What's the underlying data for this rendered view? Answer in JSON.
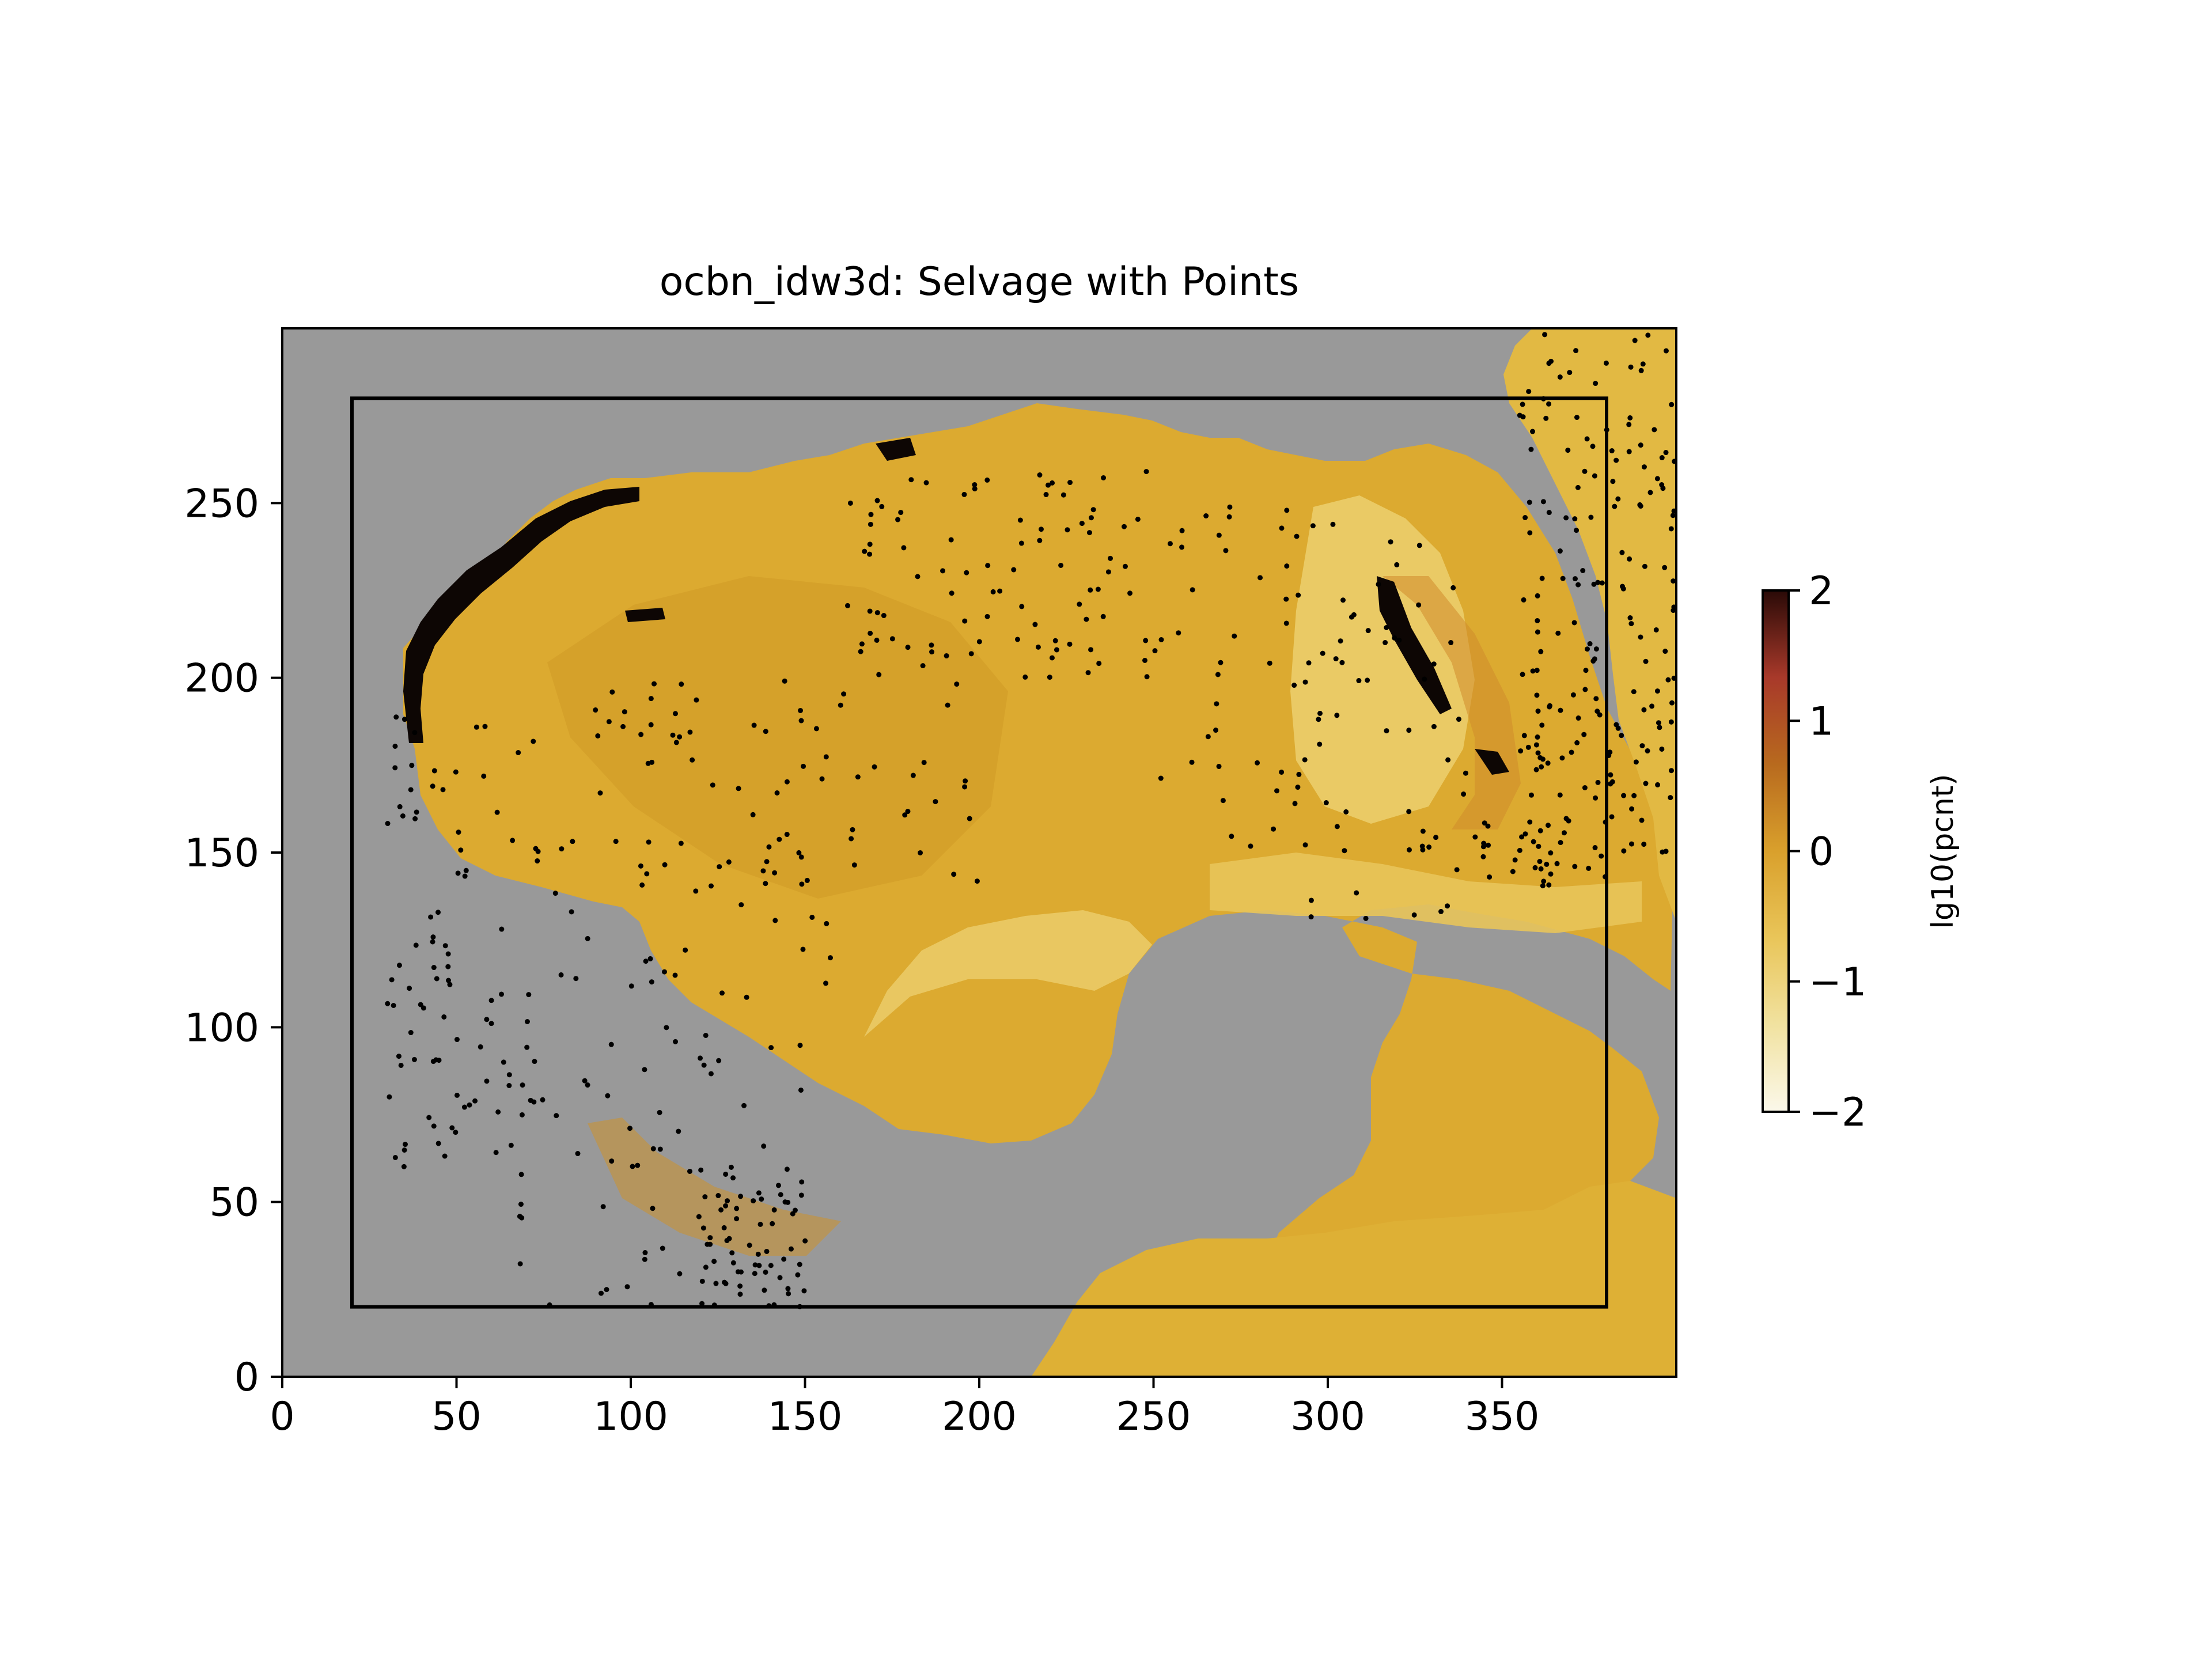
{
  "chart_data": {
    "type": "heatmap",
    "title": "ocbn_idw3d: Selvage with Points",
    "xlabel": "",
    "ylabel": "",
    "xlim": [
      0,
      400
    ],
    "ylim": [
      0,
      300
    ],
    "x_ticks": [
      0,
      50,
      100,
      150,
      200,
      250,
      300,
      350
    ],
    "y_ticks": [
      0,
      50,
      100,
      150,
      200,
      250
    ],
    "colorbar": {
      "label": "lg10(pcnt)",
      "range": [
        -2,
        2
      ],
      "ticks": [
        2,
        1,
        0,
        -1,
        -2
      ],
      "tick_labels": [
        "2",
        "1",
        "0",
        "−1",
        "−2"
      ],
      "colors": [
        "#fbf8ea",
        "#f1e2a0",
        "#e9c559",
        "#d9a02c",
        "#b86a1e",
        "#a8392a",
        "#2a0a07"
      ]
    },
    "typical_value": 0,
    "no_data_color": "#999999",
    "field_color": "#dcaa30",
    "selvage_box": {
      "x0": 20,
      "x1": 380,
      "y0": 20,
      "y1": 280
    },
    "points_layer": "sample points (black markers)",
    "grid": false
  }
}
